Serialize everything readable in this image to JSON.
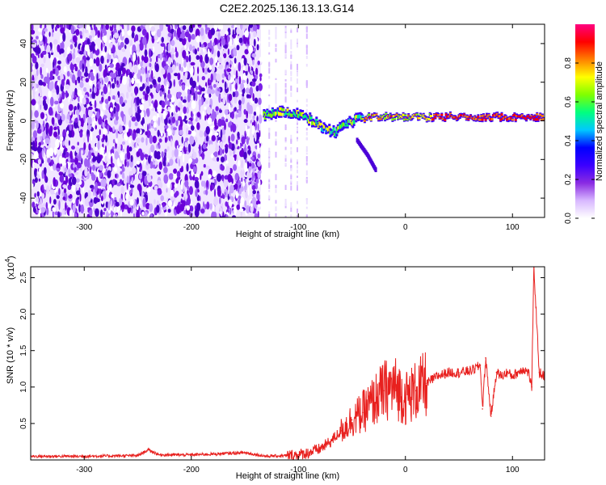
{
  "figure": {
    "title": "C2E2.2025.136.13.13.G14"
  },
  "chart_data": [
    {
      "type": "heatmap",
      "xlabel": "Height of straight line (km)",
      "ylabel": "Frequency (Hz)",
      "xlim": [
        -350,
        130
      ],
      "ylim": [
        -50,
        50
      ],
      "x_ticks": [
        -300,
        -200,
        -100,
        0,
        100
      ],
      "y_ticks": [
        -40,
        -20,
        0,
        20,
        40
      ],
      "colorbar": {
        "label": "Normalized spectral amplitude",
        "range": [
          0,
          1
        ],
        "ticks": [
          0.0,
          0.2,
          0.4,
          0.6,
          0.8
        ],
        "tick_labels": [
          "0.0",
          "0.2",
          "0.4",
          "0.6",
          "0.8"
        ],
        "colormap": [
          "#ffffff",
          "#d8b8ff",
          "#8a2be2",
          "#3b00ff",
          "#0000ff",
          "#00c8ff",
          "#00ff80",
          "#7fff00",
          "#ffff00",
          "#ff8000",
          "#ff0000",
          "#ff0080"
        ]
      },
      "regions": [
        {
          "x": [
            -350,
            -135
          ],
          "y": [
            -50,
            50
          ],
          "description": "broadband noise"
        }
      ],
      "ridge": {
        "points": [
          {
            "x": -132,
            "y": 3
          },
          {
            "x": -120,
            "y": 5
          },
          {
            "x": -105,
            "y": 4
          },
          {
            "x": -90,
            "y": 1
          },
          {
            "x": -75,
            "y": -4
          },
          {
            "x": -65,
            "y": -6
          },
          {
            "x": -55,
            "y": -2
          },
          {
            "x": -45,
            "y": 1
          },
          {
            "x": -30,
            "y": 2
          },
          {
            "x": -10,
            "y": 2
          },
          {
            "x": 20,
            "y": 2
          },
          {
            "x": 60,
            "y": 2
          },
          {
            "x": 100,
            "y": 2
          },
          {
            "x": 130,
            "y": 2
          }
        ],
        "branch": [
          {
            "x": -45,
            "y": -10
          },
          {
            "x": -35,
            "y": -18
          },
          {
            "x": -27,
            "y": -26
          }
        ]
      }
    },
    {
      "type": "line",
      "xlabel": "Height of straight line (km)",
      "ylabel": "SNR (10 * v/v)",
      "y_multiplier_label": "(x10",
      "y_multiplier_exp": "4",
      "xlim": [
        -350,
        130
      ],
      "ylim": [
        0,
        2.65
      ],
      "x_ticks": [
        -300,
        -200,
        -100,
        0,
        100
      ],
      "y_ticks": [
        0.5,
        1.0,
        1.5,
        2.0,
        2.5
      ],
      "y_tick_labels": [
        "0.5",
        "1.0",
        "1.5",
        "2.0",
        "2.5"
      ],
      "series": [
        {
          "color": "#e8201e",
          "x": [
            -350,
            -300,
            -250,
            -240,
            -230,
            -200,
            -180,
            -150,
            -130,
            -110,
            -100,
            -90,
            -80,
            -70,
            -60,
            -50,
            -40,
            -30,
            -20,
            -10,
            0,
            10,
            20,
            30,
            40,
            50,
            60,
            65,
            70,
            72,
            75,
            80,
            85,
            90,
            95,
            100,
            105,
            110,
            115,
            118,
            120,
            125,
            130
          ],
          "y": [
            0.05,
            0.05,
            0.06,
            0.14,
            0.07,
            0.07,
            0.08,
            0.1,
            0.05,
            0.06,
            0.07,
            0.1,
            0.15,
            0.25,
            0.4,
            0.55,
            0.65,
            0.8,
            0.95,
            1.0,
            0.85,
            0.95,
            1.05,
            1.15,
            1.2,
            1.2,
            1.22,
            1.25,
            1.3,
            0.7,
            1.4,
            0.6,
            1.2,
            1.15,
            1.2,
            1.15,
            1.2,
            1.25,
            1.2,
            1.0,
            2.65,
            1.2,
            1.15
          ]
        }
      ]
    }
  ]
}
